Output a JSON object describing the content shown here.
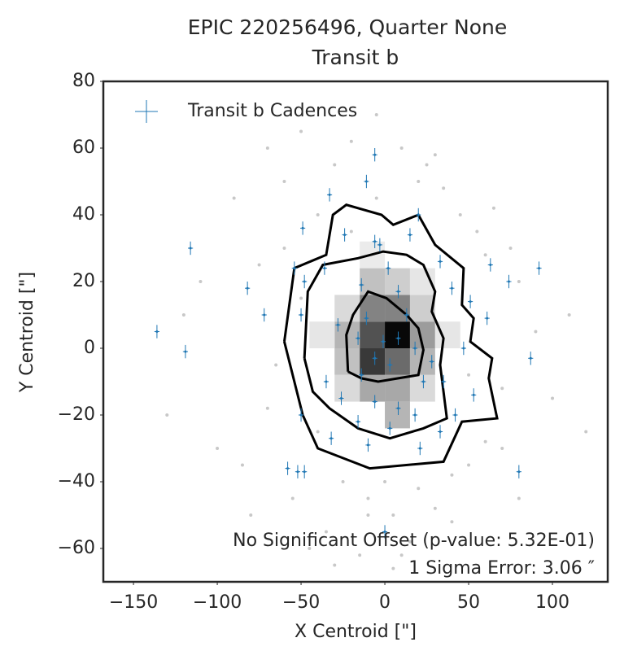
{
  "chart_data": {
    "type": "scatter",
    "title": "EPIC 220256496, Quarter None",
    "subtitle": "Transit b",
    "xlabel": "X Centroid [\"]",
    "ylabel": "Y Centroid [\"]",
    "xlim": [
      -168,
      133
    ],
    "ylim": [
      -70,
      80
    ],
    "xticks": [
      {
        "value": -150,
        "label": "−150"
      },
      {
        "value": -100,
        "label": "−100"
      },
      {
        "value": -50,
        "label": "−50"
      },
      0,
      50,
      100
    ],
    "yticks": [
      {
        "value": -60,
        "label": "−60"
      },
      {
        "value": -40,
        "label": "−40"
      },
      {
        "value": -20,
        "label": "−20"
      },
      0,
      20,
      40,
      60,
      80
    ],
    "grid": false,
    "legend": "upper left",
    "annotations": [
      "No Significant Offset (p-value: 5.32E-01)",
      "1 Sigma Error: 3.06 ″"
    ],
    "heatmap": {
      "cell_size": [
        15,
        8
      ],
      "cells": [
        [
          -15,
          -8,
          0.8
        ],
        [
          0,
          -8,
          0.6
        ],
        [
          -15,
          0,
          0.7
        ],
        [
          0,
          0,
          1.0
        ],
        [
          -15,
          8,
          0.5
        ],
        [
          0,
          8,
          0.5
        ],
        [
          15,
          0,
          0.4
        ],
        [
          15,
          -8,
          0.3
        ],
        [
          -30,
          0,
          0.3
        ],
        [
          -30,
          -8,
          0.25
        ],
        [
          -15,
          -16,
          0.35
        ],
        [
          0,
          -16,
          0.35
        ],
        [
          -15,
          16,
          0.25
        ],
        [
          0,
          16,
          0.2
        ],
        [
          15,
          8,
          0.2
        ],
        [
          15,
          -16,
          0.15
        ],
        [
          0,
          -24,
          0.3
        ],
        [
          -30,
          8,
          0.15
        ],
        [
          -30,
          -16,
          0.15
        ],
        [
          -45,
          0,
          0.1
        ],
        [
          30,
          0,
          0.1
        ],
        [
          -15,
          24,
          0.08
        ],
        [
          15,
          16,
          0.1
        ]
      ]
    },
    "background_points": {
      "color": "#c8c8c8",
      "x": [
        -120,
        -100,
        -90,
        -80,
        -75,
        -70,
        -65,
        -60,
        -55,
        -50,
        -45,
        -40,
        -35,
        -30,
        -25,
        -20,
        -15,
        -10,
        -5,
        5,
        10,
        15,
        20,
        25,
        30,
        35,
        40,
        45,
        50,
        55,
        60,
        65,
        70,
        75,
        80,
        90,
        100,
        110,
        120,
        -130,
        -110,
        -85,
        -60,
        -40,
        -20,
        0,
        20,
        40,
        60,
        80,
        -70,
        -50,
        -30,
        -10,
        10,
        30,
        50,
        70,
        -5,
        5
      ],
      "y": [
        10,
        -30,
        45,
        -50,
        25,
        60,
        -5,
        50,
        -45,
        65,
        -60,
        40,
        -55,
        55,
        -40,
        62,
        -62,
        -45,
        70,
        -50,
        60,
        -58,
        -42,
        55,
        -48,
        48,
        -52,
        40,
        -35,
        35,
        -28,
        42,
        -12,
        30,
        20,
        5,
        -15,
        10,
        -25,
        -20,
        20,
        -35,
        30,
        -25,
        35,
        -40,
        50,
        -38,
        28,
        -45,
        -18,
        15,
        -65,
        -50,
        -62,
        58,
        -8,
        -30,
        45,
        -66
      ]
    },
    "contours": {
      "color": "#000000",
      "lines": [
        {
          "x": [
            -60,
            -54,
            -35,
            -31,
            -23,
            -2,
            5,
            20,
            30,
            47,
            46,
            53,
            51,
            64,
            62,
            67,
            46,
            35,
            -9,
            -40,
            -49,
            -54,
            -60
          ],
          "y": [
            2,
            24,
            28,
            40,
            43,
            40,
            37,
            40,
            31,
            24,
            13,
            9,
            2,
            -3,
            -9,
            -21,
            -22,
            -34,
            -36,
            -30,
            -20,
            -10,
            2
          ]
        },
        {
          "x": [
            -48,
            -46,
            -37,
            -16,
            -1,
            13,
            23,
            30,
            28,
            35,
            33,
            37,
            23,
            3,
            -16,
            -33,
            -43,
            -48
          ],
          "y": [
            -3,
            17,
            25,
            27,
            29,
            28,
            25,
            17,
            11,
            3,
            -5,
            -21,
            -24,
            -27,
            -24,
            -18,
            -13,
            -3
          ]
        },
        {
          "x": [
            -22,
            -23,
            -19,
            -10,
            1,
            13,
            20,
            23,
            20,
            8,
            -4,
            -14,
            -22
          ],
          "y": [
            -7,
            4,
            10,
            17,
            15,
            10,
            6,
            -0.5,
            -8,
            -9,
            -10,
            -9,
            -7
          ]
        }
      ]
    },
    "series": [
      {
        "name": "Transit b Cadences",
        "color": "#1f77b4",
        "xerr": 1.5,
        "yerr": 2,
        "x": [
          -6,
          -11,
          -33,
          20,
          -49,
          -24,
          -6,
          -3,
          15,
          -116,
          -36,
          -54,
          63,
          92,
          33,
          2,
          -82,
          -48,
          74,
          40,
          -14,
          8,
          -72,
          -50,
          51,
          61,
          -28,
          -11,
          13,
          -136,
          -119,
          -16,
          -1,
          8,
          18,
          -6,
          -14,
          3,
          28,
          47,
          87,
          -35,
          23,
          35,
          53,
          -26,
          -6,
          8,
          18,
          42,
          -50,
          -16,
          3,
          33,
          -32,
          -10,
          21,
          -58,
          -52,
          -48,
          80,
          0
        ],
        "y": [
          58,
          50,
          46,
          40,
          36,
          34,
          32,
          31,
          34,
          30,
          24,
          24,
          25,
          24,
          26,
          24,
          18,
          20,
          20,
          18,
          19,
          17,
          10,
          10,
          14,
          9,
          7,
          9,
          10,
          5,
          -1,
          3,
          2,
          3,
          0,
          -3,
          -8,
          -5,
          -4,
          0,
          -3,
          -10,
          -10,
          -10,
          -14,
          -15,
          -16,
          -18,
          -20,
          -20,
          -20,
          -22,
          -24,
          -25,
          -27,
          -29,
          -30,
          -36,
          -37,
          -37,
          -37,
          -55
        ]
      }
    ]
  }
}
